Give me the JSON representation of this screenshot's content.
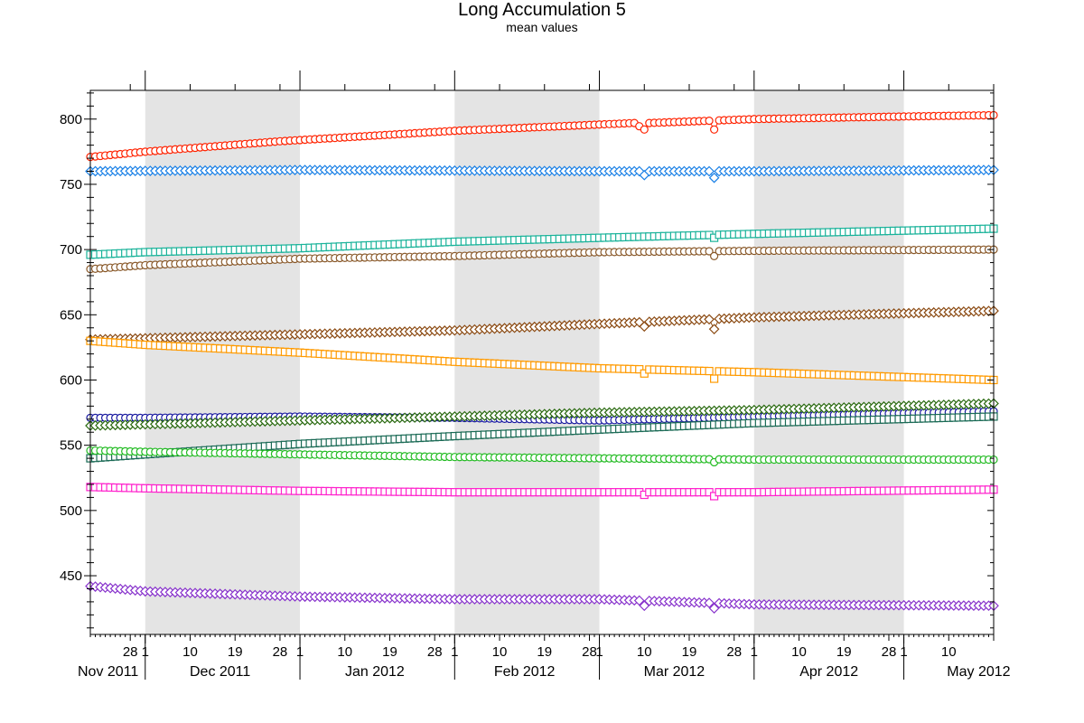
{
  "chart_data": {
    "type": "line",
    "title": "Long Accumulation 5",
    "subtitle": "mean values",
    "xlabel": "",
    "ylabel": "",
    "x_range": [
      "2011-11-20",
      "2012-05-19"
    ],
    "ylim": [
      405,
      822
    ],
    "y_ticks": [
      450,
      500,
      550,
      600,
      650,
      700,
      750,
      800
    ],
    "grid": false,
    "legend": "none",
    "shaded_month_bands": [
      [
        "2011-12-01",
        "2012-01-01"
      ],
      [
        "2012-02-01",
        "2012-03-01"
      ],
      [
        "2012-04-01",
        "2012-05-01"
      ]
    ],
    "x_tick_labels": [
      {
        "date": "2011-11-28",
        "label": "28"
      },
      {
        "date": "2011-12-01",
        "label": "1"
      },
      {
        "date": "2011-12-10",
        "label": "10"
      },
      {
        "date": "2011-12-19",
        "label": "19"
      },
      {
        "date": "2011-12-28",
        "label": "28"
      },
      {
        "date": "2012-01-01",
        "label": "1"
      },
      {
        "date": "2012-01-10",
        "label": "10"
      },
      {
        "date": "2012-01-19",
        "label": "19"
      },
      {
        "date": "2012-01-28",
        "label": "28"
      },
      {
        "date": "2012-02-01",
        "label": "1"
      },
      {
        "date": "2012-02-10",
        "label": "10"
      },
      {
        "date": "2012-02-19",
        "label": "19"
      },
      {
        "date": "2012-02-28",
        "label": "28"
      },
      {
        "date": "2012-03-01",
        "label": "1"
      },
      {
        "date": "2012-03-10",
        "label": "10"
      },
      {
        "date": "2012-03-19",
        "label": "19"
      },
      {
        "date": "2012-03-28",
        "label": "28"
      },
      {
        "date": "2012-04-01",
        "label": "1"
      },
      {
        "date": "2012-04-10",
        "label": "10"
      },
      {
        "date": "2012-04-19",
        "label": "19"
      },
      {
        "date": "2012-04-28",
        "label": "28"
      },
      {
        "date": "2012-05-01",
        "label": "1"
      },
      {
        "date": "2012-05-10",
        "label": "10"
      }
    ],
    "month_labels": [
      {
        "date": "2011-11-20",
        "label": "Nov 2011"
      },
      {
        "date": "2011-12-16",
        "label": "Dec 2011"
      },
      {
        "date": "2012-01-16",
        "label": "Jan 2012"
      },
      {
        "date": "2012-02-15",
        "label": "Feb 2012"
      },
      {
        "date": "2012-03-16",
        "label": "Mar 2012"
      },
      {
        "date": "2012-04-16",
        "label": "Apr 2012"
      },
      {
        "date": "2012-05-16",
        "label": "May 2012"
      }
    ],
    "series": [
      {
        "marker": "Y",
        "shape": "circle",
        "color": "#ff2200",
        "x": [
          "2011-11-20",
          "2011-12-01",
          "2011-12-28",
          "2012-02-01",
          "2012-03-08",
          "2012-03-10",
          "2012-03-11",
          "2012-04-01",
          "2012-05-01",
          "2012-05-19"
        ],
        "y": [
          771,
          775,
          783,
          791,
          797,
          792,
          797,
          800,
          802,
          803
        ],
        "x_dips": [
          "2012-03-24"
        ],
        "y_dips": [
          792
        ]
      },
      {
        "marker": "X",
        "shape": "diamond",
        "color": "#1a80e6",
        "x": [
          "2011-11-20",
          "2012-01-01",
          "2012-03-01",
          "2012-04-01",
          "2012-05-19"
        ],
        "y": [
          760,
          761,
          760,
          760,
          761
        ],
        "x_dips": [
          "2012-03-10",
          "2012-03-24"
        ],
        "y_dips": [
          757,
          755
        ]
      },
      {
        "marker": "H",
        "shape": "square",
        "color": "#1ab39a",
        "x": [
          "2011-11-20",
          "2011-12-01",
          "2012-01-01",
          "2012-02-01",
          "2012-03-01",
          "2012-04-01",
          "2012-05-19"
        ],
        "y": [
          696,
          698,
          701,
          706,
          709,
          712,
          716
        ],
        "x_dips": [
          "2012-03-24"
        ],
        "y_dips": [
          709
        ]
      },
      {
        "marker": "H",
        "shape": "circle",
        "color": "#8a5a2b",
        "x": [
          "2011-11-20",
          "2011-12-01",
          "2012-01-01",
          "2012-02-01",
          "2012-03-01",
          "2012-04-01",
          "2012-05-19"
        ],
        "y": [
          685,
          688,
          693,
          695,
          698,
          699,
          700
        ],
        "x_dips": [
          "2012-03-24"
        ],
        "y_dips": [
          695
        ]
      },
      {
        "marker": "V",
        "shape": "diamond",
        "color": "#8b4a12",
        "x": [
          "2011-11-20",
          "2011-12-01",
          "2012-01-01",
          "2012-02-01",
          "2012-03-01",
          "2012-04-01",
          "2012-05-19"
        ],
        "y": [
          631,
          632,
          635,
          638,
          643,
          648,
          653
        ],
        "x_dips": [
          "2012-03-10",
          "2012-03-24"
        ],
        "y_dips": [
          641,
          639
        ]
      },
      {
        "marker": "V",
        "shape": "square",
        "color": "#ff9a00",
        "x": [
          "2011-11-20",
          "2011-12-01",
          "2012-01-01",
          "2012-02-01",
          "2012-03-01",
          "2012-04-01",
          "2012-05-19"
        ],
        "y": [
          630,
          627,
          621,
          614,
          609,
          606,
          600
        ],
        "x_dips": [
          "2012-03-10",
          "2012-03-24"
        ],
        "y_dips": [
          605,
          601
        ]
      },
      {
        "marker": "W",
        "shape": "circle",
        "color": "#1a1aa0",
        "x": [
          "2011-11-20",
          "2011-12-01",
          "2012-01-01",
          "2012-02-01",
          "2012-03-01",
          "2012-04-01",
          "2012-05-19"
        ],
        "y": [
          571,
          571,
          572,
          571,
          569,
          572,
          576
        ],
        "x_dips": [],
        "y_dips": []
      },
      {
        "marker": "V",
        "shape": "diamond",
        "color": "#2a6a10",
        "x": [
          "2011-11-20",
          "2011-12-01",
          "2012-01-01",
          "2012-02-01",
          "2012-03-01",
          "2012-04-01",
          "2012-05-19"
        ],
        "y": [
          565,
          566,
          569,
          572,
          575,
          577,
          582
        ],
        "x_dips": [],
        "y_dips": []
      },
      {
        "marker": "F",
        "shape": "square",
        "color": "#1a6a55",
        "x": [
          "2011-11-20",
          "2011-12-01",
          "2012-01-01",
          "2012-02-01",
          "2012-03-01",
          "2012-04-01",
          "2012-05-19"
        ],
        "y": [
          540,
          543,
          551,
          557,
          562,
          567,
          572
        ],
        "x_dips": [],
        "y_dips": []
      },
      {
        "marker": "P",
        "shape": "circle",
        "color": "#22bb22",
        "x": [
          "2011-11-20",
          "2011-12-01",
          "2012-01-01",
          "2012-02-01",
          "2012-03-01",
          "2012-04-01",
          "2012-05-19"
        ],
        "y": [
          546,
          545,
          543,
          541,
          540,
          539,
          539
        ],
        "x_dips": [
          "2012-03-24"
        ],
        "y_dips": [
          537
        ]
      },
      {
        "marker": "M",
        "shape": "square",
        "color": "#ff22cc",
        "x": [
          "2011-11-20",
          "2011-12-01",
          "2012-01-01",
          "2012-02-01",
          "2012-03-01",
          "2012-04-01",
          "2012-05-19"
        ],
        "y": [
          518,
          517,
          515,
          514,
          514,
          514,
          516
        ],
        "x_dips": [
          "2012-03-10",
          "2012-03-24"
        ],
        "y_dips": [
          512,
          511
        ]
      },
      {
        "marker": "X",
        "shape": "diamond",
        "color": "#8833cc",
        "x": [
          "2011-11-20",
          "2011-12-01",
          "2012-01-01",
          "2012-02-01",
          "2012-03-01",
          "2012-04-01",
          "2012-05-19"
        ],
        "y": [
          442,
          438,
          434,
          432,
          432,
          428,
          427
        ],
        "x_dips": [
          "2012-03-10",
          "2012-03-24"
        ],
        "y_dips": [
          427,
          425
        ]
      }
    ]
  }
}
